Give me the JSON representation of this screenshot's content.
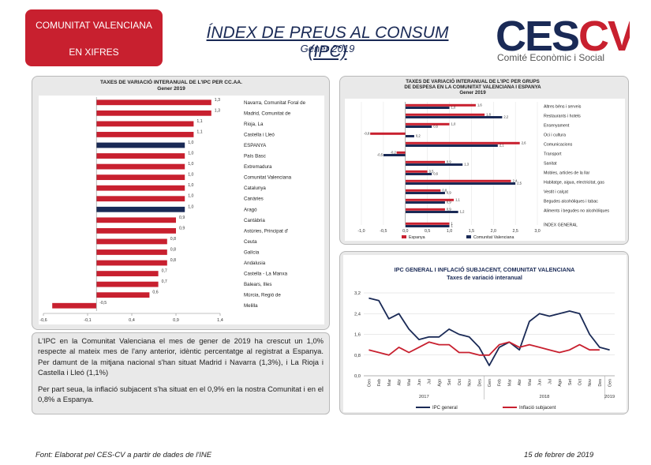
{
  "badge": {
    "line1": "COMUNITAT VALENCIANA",
    "line2": "EN XIFRES"
  },
  "header": {
    "title": "ÍNDEX DE PREUS AL CONSUM (IPC)",
    "subtitle": "Gener 2019"
  },
  "logo": {
    "text": "CESCV",
    "subtitle": "Comité Econòmic i Social",
    "colors": {
      "ces": "#1a2a56",
      "cv": "#c8202f"
    }
  },
  "colors": {
    "espanya": "#c8202f",
    "cv": "#1a2a56",
    "ipc_general": "#1a2a56",
    "subjacent": "#c8202f"
  },
  "chart_data": [
    {
      "type": "bar",
      "orientation": "horizontal",
      "title": "TAXES DE VARIACIÓ INTERANUAL DE L'IPC PER CC.AA.",
      "subtitle": "Gener 2019",
      "categories": [
        "Navarra, Comunitat Foral de",
        "Madrid, Comunitat de",
        "Rioja, La",
        "Castella i Lleó",
        "ESPANYA",
        "País Basc",
        "Extremadura",
        "Comunitat Valenciana",
        "Catalunya",
        "Canàries",
        "Aragó",
        "Cantàbria",
        "Astúries, Principat d'",
        "Ceuta",
        "Galícia",
        "Andalusia",
        "Castella - La Manxa",
        "Balears, Illes",
        "Múrcia, Regió de",
        "Melilla"
      ],
      "values": [
        1.3,
        1.3,
        1.1,
        1.1,
        1.0,
        1.0,
        1.0,
        1.0,
        1.0,
        1.0,
        1.0,
        0.9,
        0.9,
        0.8,
        0.8,
        0.8,
        0.7,
        0.7,
        0.6,
        -0.5
      ],
      "value_labels": [
        "1,3",
        "1,3",
        "1,1",
        "1,1",
        "1,0",
        "1,0",
        "1,0",
        "1,0",
        "1,0",
        "1,0",
        "1,0",
        "0,9",
        "0,9",
        "0,8",
        "0,8",
        "0,8",
        "0,7",
        "0,7",
        "0,6",
        "-0,5"
      ],
      "highlight": [
        "ESPANYA",
        "Aragó"
      ],
      "xlim": [
        -0.6,
        1.4
      ],
      "xticks": [
        -0.6,
        -0.1,
        0.4,
        0.9,
        1.4
      ],
      "xtick_labels": [
        "-0,6",
        "-0,1",
        "0,4",
        "0,9",
        "1,4"
      ]
    },
    {
      "type": "bar",
      "orientation": "horizontal",
      "title": "TAXES DE VARIACIÓ INTERANUAL DE L'IPC PER GRUPS DE DESPESA EN LA COMUNITAT VALENCIANA I ESPANYA",
      "subtitle": "Gener 2019",
      "categories": [
        "Altres béns i serveis",
        "Restaurants i hotels",
        "Ensenyament",
        "Oci i cultura",
        "Comunicacions",
        "Transport",
        "Sanitat",
        "Mobles, articles de la llar",
        "Habitatge, aigua, electricitat, gas",
        "Vestit i calçat",
        "Begudes alcohòliques i tabac",
        "Aliments i begudes no alcohòliques",
        "ÍNDEX GENERAL"
      ],
      "series": [
        {
          "name": "Espanya",
          "values": [
            1.6,
            1.8,
            1.0,
            -0.8,
            2.6,
            -0.2,
            0.9,
            0.5,
            2.4,
            0.8,
            1.1,
            0.9,
            1.0
          ],
          "labels": [
            "1,6",
            "1,8",
            "1,0",
            "-0,8",
            "2,6",
            "-0,2",
            "0,9",
            "0,5",
            "2,4",
            "0,8",
            "1,1",
            "0,9",
            "1"
          ]
        },
        {
          "name": "Comunitat Valenciana",
          "values": [
            1.0,
            2.2,
            0.6,
            0.2,
            2.1,
            -0.5,
            1.3,
            0.6,
            2.5,
            0.9,
            0.9,
            1.2,
            1.0
          ],
          "labels": [
            "1,0",
            "2,2",
            "0,6",
            "0,2",
            "2,1",
            "-0,5",
            "1,3",
            "0,6",
            "2,5",
            "0,9",
            "0,9",
            "1,2",
            "1"
          ]
        }
      ],
      "xlim": [
        -1.0,
        3.0
      ],
      "xticks": [
        -1.0,
        -0.5,
        0.0,
        0.5,
        1.0,
        1.5,
        2.0,
        2.5,
        3.0
      ],
      "xtick_labels": [
        "-1,0",
        "-0,5",
        "0,0",
        "0,5",
        "1,0",
        "1,5",
        "2,0",
        "2,5",
        "3,0"
      ],
      "legend": "bottom"
    },
    {
      "type": "line",
      "title": "IPC GENERAL I INFLACIÓ SUBJACENT, COMUNITAT VALENCIANA",
      "subtitle": "Taxes de variació interanual",
      "x": [
        "Gen",
        "Feb",
        "Mar",
        "Abr",
        "Mai",
        "Jun",
        "Jul",
        "Ago",
        "Set",
        "Oct",
        "Nov",
        "Des",
        "Gen",
        "Feb",
        "Mar",
        "Abr",
        "Mai",
        "Jun",
        "Jul",
        "Ago",
        "Set",
        "Oct",
        "Nov",
        "Des",
        "Gen"
      ],
      "years": [
        {
          "label": "2017",
          "start": 0,
          "end": 11
        },
        {
          "label": "2018",
          "start": 12,
          "end": 23
        },
        {
          "label": "2019",
          "start": 24,
          "end": 24
        }
      ],
      "series": [
        {
          "name": "IPC general",
          "values": [
            3.0,
            2.9,
            2.2,
            2.4,
            1.8,
            1.4,
            1.5,
            1.5,
            1.8,
            1.6,
            1.5,
            1.1,
            0.4,
            1.1,
            1.3,
            1.0,
            2.1,
            2.4,
            2.3,
            2.4,
            2.5,
            2.4,
            1.6,
            1.1,
            1.0
          ]
        },
        {
          "name": "Inflació subjacent",
          "values": [
            1.0,
            0.9,
            0.8,
            1.1,
            0.9,
            1.1,
            1.3,
            1.2,
            1.2,
            0.9,
            0.9,
            0.8,
            0.8,
            1.2,
            1.3,
            1.1,
            1.2,
            1.1,
            1.0,
            0.9,
            1.0,
            1.2,
            1.0,
            1.0,
            null
          ]
        }
      ],
      "ylim": [
        0.0,
        3.2
      ],
      "yticks": [
        0.0,
        0.8,
        1.6,
        2.4,
        3.2
      ],
      "ytick_labels": [
        "0,0",
        "0,8",
        "1,6",
        "2,4",
        "3,2"
      ],
      "legend": "bottom"
    }
  ],
  "text": {
    "p1": "L'IPC en la Comunitat Valenciana el mes de gener de 2019 ha crescut un 1,0% respecte al mateix mes de l'any anterior, idèntic percentatge al registrat a Espanya. Per damunt de la mitjana nacional s'han situat Madrid i Navarra (1,3%), i La Rioja i Castella i Lleó (1,1%)",
    "p2": "Per part seua, la inflació subjacent s'ha situat en el 0,9% en la nostra Comunitat i en el 0,8% a Espanya."
  },
  "footer": {
    "source": "Font: Elaborat pel CES-CV a partir de dades de l'INE",
    "date": "15 de febrer de 2019"
  }
}
